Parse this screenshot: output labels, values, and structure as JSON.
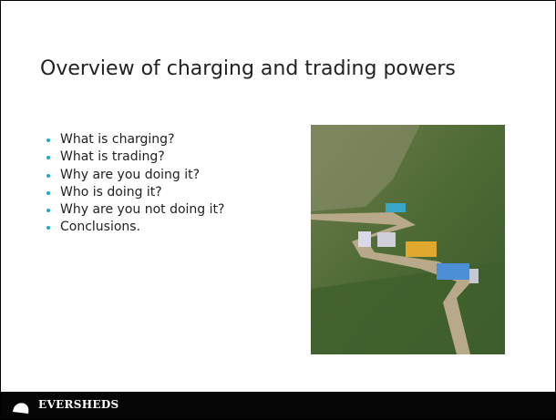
{
  "slide": {
    "title": "Overview of charging and trading powers",
    "bullets": [
      "What is charging?",
      "What is trading?",
      "Why are you doing it?",
      "Who is doing it?",
      "Why are you not doing it?",
      "Conclusions."
    ]
  },
  "footer": {
    "logo_text": "EVERSHEDS"
  }
}
